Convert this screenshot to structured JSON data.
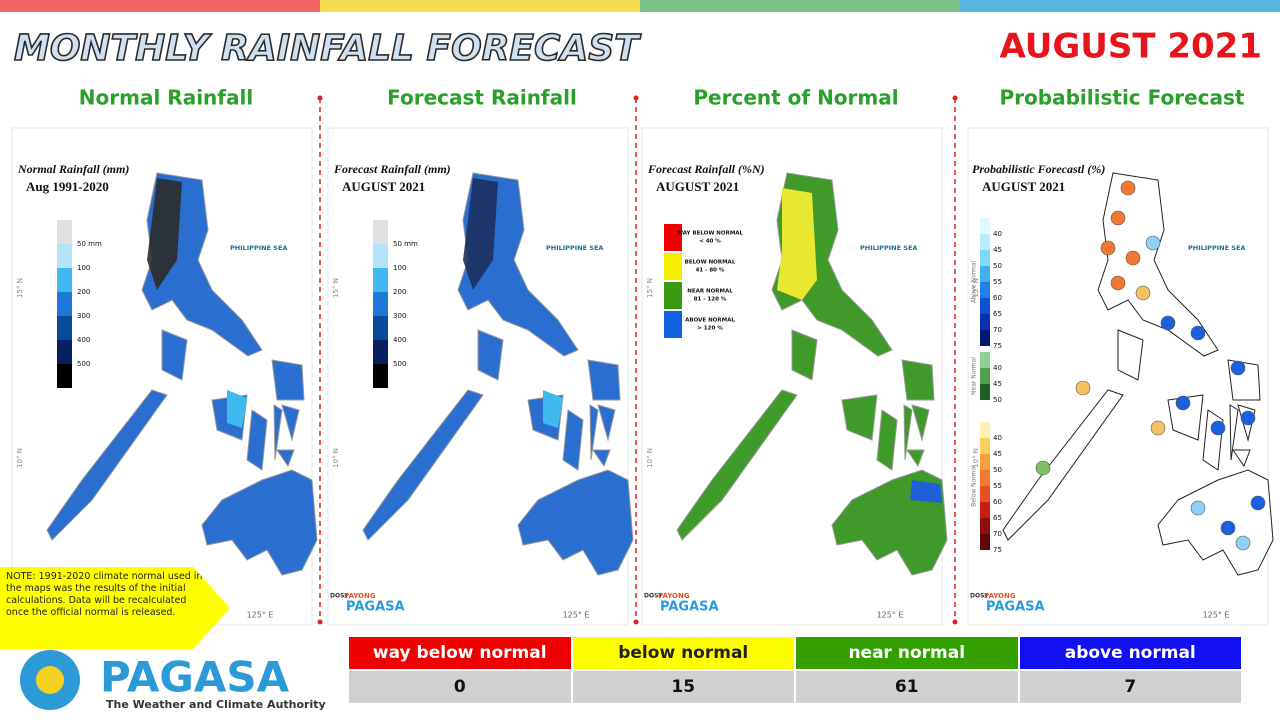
{
  "header": {
    "title": "MONTHLY RAINFALL FORECAST",
    "period": "AUGUST 2021"
  },
  "panels": [
    {
      "heading": "Normal Rainfall",
      "map_title": "Normal Rainfall (mm)",
      "map_subtitle": "Aug 1991-2020",
      "sea_label": "PHILIPPINE SEA",
      "legend": [
        "50 mm",
        "100",
        "200",
        "300",
        "400",
        "500"
      ]
    },
    {
      "heading": "Forecast Rainfall",
      "map_title": "Forecast Rainfall (mm)",
      "map_subtitle": "AUGUST 2021",
      "sea_label": "PHILIPPINE SEA",
      "legend": [
        "50 mm",
        "100",
        "200",
        "300",
        "400",
        "500"
      ]
    },
    {
      "heading": "Percent of Normal",
      "map_title": "Forecast Rainfall (%N)",
      "map_subtitle": "AUGUST 2021",
      "sea_label": "PHILIPPINE SEA",
      "legend": [
        {
          "label": "WAY BELOW NORMAL",
          "range": "< 40 %"
        },
        {
          "label": "BELOW NORMAL",
          "range": "41 - 80 %"
        },
        {
          "label": "NEAR NORMAL",
          "range": "81 - 120 %"
        },
        {
          "label": "ABOVE NORMAL",
          "range": "> 120 %"
        }
      ]
    },
    {
      "heading": "Probabilistic Forecast",
      "map_title": "Probabilistic Forecastl (%)",
      "map_subtitle": "AUGUST 2021",
      "sea_label": "PHILIPPINE SEA",
      "legend_groups": [
        {
          "name": "Above Normal",
          "levels": [
            40,
            45,
            50,
            55,
            60,
            65,
            70,
            75
          ]
        },
        {
          "name": "Near Normal",
          "levels": [
            40,
            45,
            50
          ]
        },
        {
          "name": "Below Normal",
          "levels": [
            40,
            45,
            50,
            55,
            60,
            65,
            70,
            75
          ]
        }
      ]
    }
  ],
  "axis_labels": {
    "lat": [
      "15° N",
      "10° N"
    ],
    "lon": [
      "125° E"
    ]
  },
  "note": "NOTE: 1991-2020 climate normal used in the maps was the results of the initial calculations. Data will be recalculated once the official normal is released.",
  "logo": {
    "agency": "PAGASA",
    "tagline": "The Weather and Climate Authority",
    "dost": "DOST",
    "payong": "PAYONG",
    "pagasa": "PAGASA"
  },
  "summary_table": {
    "headers": [
      "way below normal",
      "below normal",
      "near normal",
      "above normal"
    ],
    "rows": [
      [
        0,
        15,
        61,
        7
      ]
    ]
  }
}
